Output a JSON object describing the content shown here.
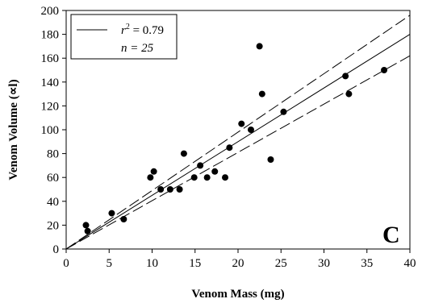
{
  "chart_data": {
    "type": "scatter",
    "xlabel": "Venom Mass (mg)",
    "ylabel": "Venom Volume (∝l)",
    "xlim": [
      0,
      40
    ],
    "ylim": [
      0,
      200
    ],
    "x_ticks": [
      0,
      5,
      10,
      15,
      20,
      25,
      30,
      35,
      40
    ],
    "y_ticks": [
      0,
      20,
      40,
      60,
      80,
      100,
      120,
      140,
      160,
      180,
      200
    ],
    "grid": false,
    "legend": {
      "placement": "top-left",
      "line1_prefix": "r",
      "line1_sup": "2",
      "line1_rest": " = 0.79",
      "line2": "n = 25"
    },
    "panel_label": "C",
    "points": [
      {
        "x": 2.3,
        "y": 20
      },
      {
        "x": 2.5,
        "y": 15
      },
      {
        "x": 5.3,
        "y": 30
      },
      {
        "x": 6.7,
        "y": 25
      },
      {
        "x": 9.8,
        "y": 60
      },
      {
        "x": 10.2,
        "y": 65
      },
      {
        "x": 11.0,
        "y": 50
      },
      {
        "x": 12.1,
        "y": 50
      },
      {
        "x": 13.2,
        "y": 50
      },
      {
        "x": 13.7,
        "y": 80
      },
      {
        "x": 14.9,
        "y": 60
      },
      {
        "x": 15.6,
        "y": 70
      },
      {
        "x": 16.4,
        "y": 60
      },
      {
        "x": 17.3,
        "y": 65
      },
      {
        "x": 18.5,
        "y": 60
      },
      {
        "x": 19.0,
        "y": 85
      },
      {
        "x": 20.4,
        "y": 105
      },
      {
        "x": 21.5,
        "y": 100
      },
      {
        "x": 22.5,
        "y": 170
      },
      {
        "x": 22.8,
        "y": 130
      },
      {
        "x": 23.8,
        "y": 75
      },
      {
        "x": 25.3,
        "y": 115
      },
      {
        "x": 32.5,
        "y": 145
      },
      {
        "x": 32.9,
        "y": 130
      },
      {
        "x": 37.0,
        "y": 150
      }
    ],
    "fit_line": {
      "x": [
        0,
        40
      ],
      "y": [
        0,
        180
      ]
    },
    "ci_upper": {
      "x": [
        0,
        40
      ],
      "y": [
        0,
        196
      ]
    },
    "ci_lower": {
      "x": [
        0,
        40
      ],
      "y": [
        0,
        162
      ]
    }
  }
}
